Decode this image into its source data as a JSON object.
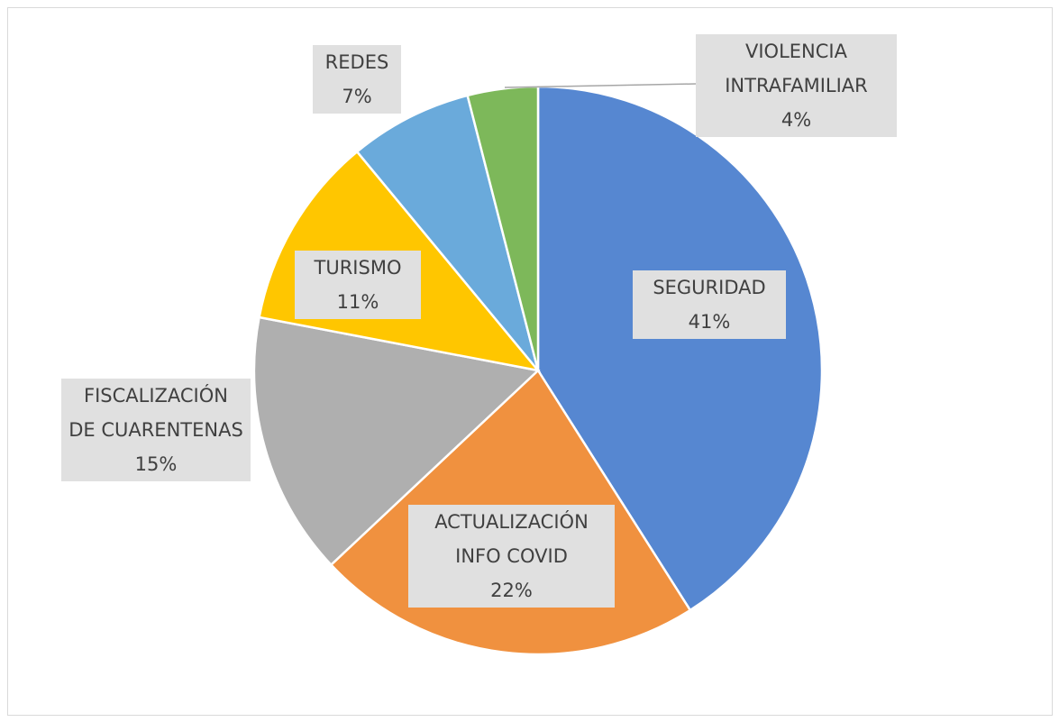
{
  "chart_data": {
    "type": "pie",
    "categories": [
      "SEGURIDAD",
      "ACTUALIZACIÓN INFO COVID",
      "FISCALIZACIÓN DE CUARENTENAS",
      "TURISMO",
      "REDES",
      "VIOLENCIA INTRAFAMILIAR"
    ],
    "values": [
      41,
      22,
      15,
      11,
      7,
      4
    ],
    "value_labels": [
      "41%",
      "22%",
      "15%",
      "11%",
      "7%",
      "4%"
    ],
    "colors": [
      "#5687d1",
      "#f0913f",
      "#afafaf",
      "#ffc600",
      "#6aaadb",
      "#7db85a"
    ]
  }
}
